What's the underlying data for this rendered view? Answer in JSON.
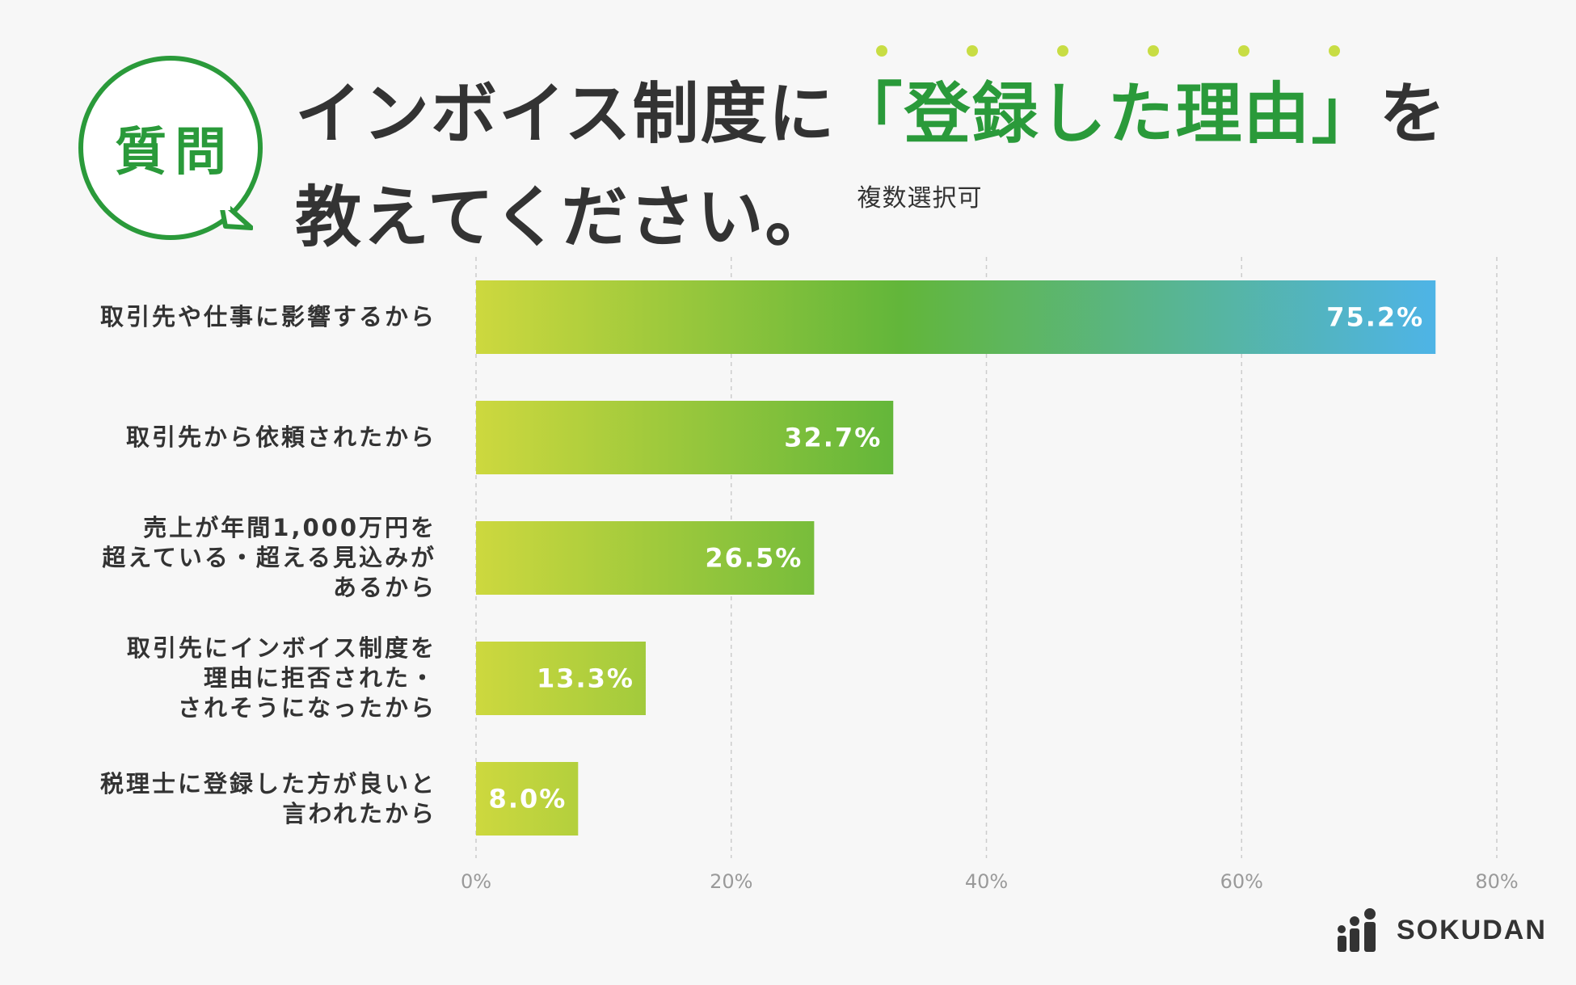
{
  "header": {
    "badge": "質問",
    "title_part1": "インボイス制度に",
    "title_highlight": "「登録した理由」",
    "title_part2": "を",
    "title_line2": "教えてください。",
    "title_note": "複数選択可"
  },
  "brand": {
    "name": "SOKUDAN"
  },
  "colors": {
    "accent_green": "#2a9a3a",
    "gradient_start": "#cdd83e",
    "gradient_mid": "#62b63a",
    "gradient_end": "#4eb4e8",
    "gridline": "#cccccc"
  },
  "chart_data": {
    "type": "bar",
    "orientation": "horizontal",
    "categories": [
      "取引先や仕事に影響するから",
      "取引先から依頼されたから",
      "売上が年間1,000万円を\n超えている・超える見込みが\nあるから",
      "取引先にインボイス制度を\n理由に拒否された・\nされそうになったから",
      "税理士に登録した方が良いと\n言われたから"
    ],
    "values": [
      75.2,
      32.7,
      26.5,
      13.3,
      8.0
    ],
    "data_labels": [
      "75.2%",
      "32.7%",
      "26.5%",
      "13.3%",
      "8.0%"
    ],
    "x_ticks": [
      "0%",
      "20%",
      "40%",
      "60%",
      "80%"
    ],
    "xlim": [
      0,
      80
    ],
    "grid": "vertical dashed",
    "title": "",
    "xlabel": "",
    "ylabel": ""
  }
}
